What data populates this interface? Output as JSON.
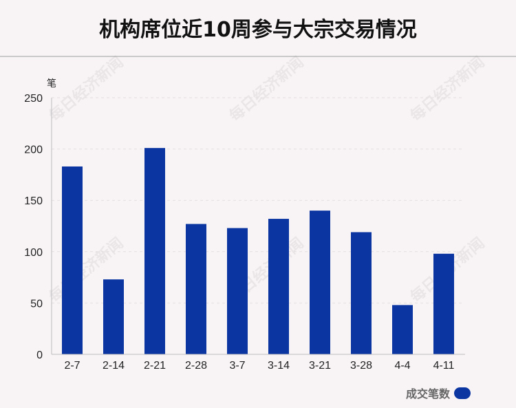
{
  "title": "机构席位近10周参与大宗交易情况",
  "watermark": "每日经济新闻",
  "colors": {
    "bar": "#0b36a1",
    "axis": "#bbbbbb",
    "grid": "#e3dde0",
    "text": "#222222"
  },
  "chart_data": {
    "type": "bar",
    "title": "机构席位近10周参与大宗交易情况",
    "ylabel": "笔",
    "xlabel": "",
    "categories": [
      "2-7",
      "2-14",
      "2-21",
      "2-28",
      "3-7",
      "3-14",
      "3-21",
      "3-28",
      "4-4",
      "4-11"
    ],
    "series": [
      {
        "name": "成交笔数",
        "values": [
          183,
          73,
          201,
          127,
          123,
          132,
          140,
          119,
          48,
          98
        ]
      }
    ],
    "ylim": [
      0,
      250
    ],
    "yticks": [
      0,
      50,
      100,
      150,
      200,
      250
    ],
    "grid": true,
    "legend_position": "bottom-right"
  }
}
